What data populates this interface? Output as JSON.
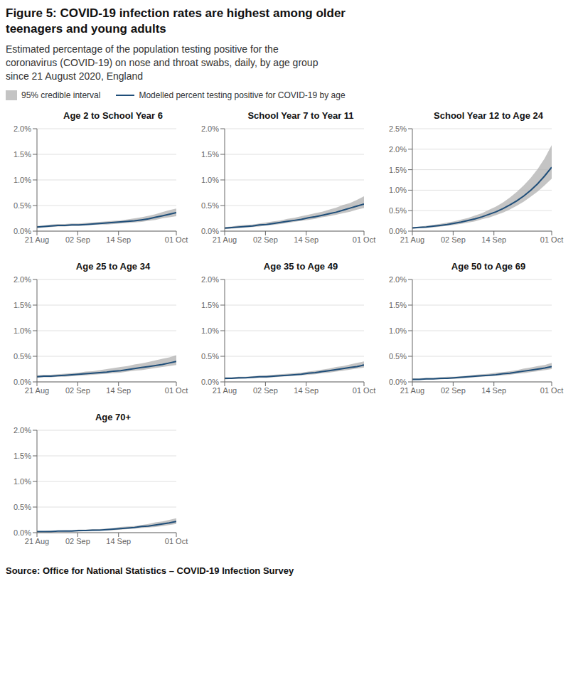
{
  "title": "Figure 5: COVID-19 infection rates are highest among older\nteenagers and young adults",
  "subtitle": "Estimated percentage of the population testing positive for the\ncoronavirus (COVID-19) on nose and throat swabs, daily, by age group\nsince 21 August 2020, England",
  "source": "Source: Office for National Statistics – COVID-19 Infection Survey",
  "chart_data": [
    {
      "type": "line",
      "title": "Age 2 to School Year 6",
      "x": [
        0,
        2.05,
        4.1,
        6.15,
        8.2,
        10.25,
        12.3,
        14.35,
        16.4,
        18.45,
        20.5,
        22.55,
        24.6,
        26.65,
        28.7,
        30.75,
        32.8,
        34.85,
        36.9,
        38.95,
        41
      ],
      "xlim": [
        0,
        41
      ],
      "xticks": [
        {
          "value": 0,
          "label": "21 Aug"
        },
        {
          "value": 12,
          "label": "02 Sep"
        },
        {
          "value": 24,
          "label": "14 Sep"
        },
        {
          "value": 41,
          "label": "01 Oct"
        }
      ],
      "ylim": [
        0,
        2.0
      ],
      "yticks": [
        {
          "value": 0.0,
          "label": "0.0%"
        },
        {
          "value": 0.5,
          "label": "0.5%"
        },
        {
          "value": 1.0,
          "label": "1.0%"
        },
        {
          "value": 1.5,
          "label": "1.5%"
        },
        {
          "value": 2.0,
          "label": "2.0%"
        }
      ],
      "grid": true,
      "series": [
        {
          "name": "95% credible interval",
          "type": "area",
          "color": "#b0b0b0",
          "lower": [
            0.06,
            0.07,
            0.08,
            0.09,
            0.09,
            0.1,
            0.1,
            0.11,
            0.12,
            0.13,
            0.13,
            0.14,
            0.15,
            0.16,
            0.17,
            0.18,
            0.2,
            0.22,
            0.25,
            0.27,
            0.29
          ],
          "upper": [
            0.1,
            0.11,
            0.13,
            0.14,
            0.14,
            0.15,
            0.15,
            0.16,
            0.17,
            0.18,
            0.19,
            0.2,
            0.21,
            0.23,
            0.25,
            0.27,
            0.3,
            0.33,
            0.37,
            0.41,
            0.44
          ]
        },
        {
          "name": "Modelled percent testing positive for COVID-19 by age",
          "type": "line",
          "color": "#1f4e79",
          "values": [
            0.08,
            0.09,
            0.1,
            0.11,
            0.11,
            0.12,
            0.12,
            0.13,
            0.14,
            0.15,
            0.16,
            0.17,
            0.18,
            0.19,
            0.2,
            0.22,
            0.24,
            0.27,
            0.3,
            0.33,
            0.36
          ]
        }
      ]
    },
    {
      "type": "line",
      "title": "School Year 7 to Year 11",
      "x": [
        0,
        2.05,
        4.1,
        6.15,
        8.2,
        10.25,
        12.3,
        14.35,
        16.4,
        18.45,
        20.5,
        22.55,
        24.6,
        26.65,
        28.7,
        30.75,
        32.8,
        34.85,
        36.9,
        38.95,
        41
      ],
      "xlim": [
        0,
        41
      ],
      "xticks": [
        {
          "value": 0,
          "label": "21 Aug"
        },
        {
          "value": 12,
          "label": "02 Sep"
        },
        {
          "value": 24,
          "label": "14 Sep"
        },
        {
          "value": 41,
          "label": "01 Oct"
        }
      ],
      "ylim": [
        0,
        2.0
      ],
      "yticks": [
        {
          "value": 0.0,
          "label": "0.0%"
        },
        {
          "value": 0.5,
          "label": "0.5%"
        },
        {
          "value": 1.0,
          "label": "1.0%"
        },
        {
          "value": 1.5,
          "label": "1.5%"
        },
        {
          "value": 2.0,
          "label": "2.0%"
        }
      ],
      "grid": true,
      "series": [
        {
          "name": "95% credible interval",
          "type": "area",
          "color": "#b0b0b0",
          "lower": [
            0.04,
            0.05,
            0.06,
            0.07,
            0.08,
            0.09,
            0.11,
            0.12,
            0.14,
            0.16,
            0.18,
            0.2,
            0.22,
            0.24,
            0.27,
            0.29,
            0.32,
            0.35,
            0.38,
            0.42,
            0.45
          ],
          "upper": [
            0.08,
            0.09,
            0.11,
            0.12,
            0.13,
            0.15,
            0.17,
            0.19,
            0.21,
            0.24,
            0.26,
            0.29,
            0.32,
            0.35,
            0.38,
            0.42,
            0.46,
            0.51,
            0.55,
            0.61,
            0.68
          ]
        },
        {
          "name": "Modelled percent testing positive for COVID-19 by age",
          "type": "line",
          "color": "#1f4e79",
          "values": [
            0.06,
            0.07,
            0.08,
            0.09,
            0.1,
            0.12,
            0.13,
            0.15,
            0.17,
            0.19,
            0.21,
            0.23,
            0.26,
            0.28,
            0.31,
            0.34,
            0.37,
            0.41,
            0.45,
            0.49,
            0.53
          ]
        }
      ]
    },
    {
      "type": "line",
      "title": "School Year 12 to Age 24",
      "x": [
        0,
        2.05,
        4.1,
        6.15,
        8.2,
        10.25,
        12.3,
        14.35,
        16.4,
        18.45,
        20.5,
        22.55,
        24.6,
        26.65,
        28.7,
        30.75,
        32.8,
        34.85,
        36.9,
        38.95,
        41
      ],
      "xlim": [
        0,
        41
      ],
      "xticks": [
        {
          "value": 0,
          "label": "21 Aug"
        },
        {
          "value": 12,
          "label": "02 Sep"
        },
        {
          "value": 24,
          "label": "14 Sep"
        },
        {
          "value": 41,
          "label": "01 Oct"
        }
      ],
      "ylim": [
        0,
        2.5
      ],
      "yticks": [
        {
          "value": 0.0,
          "label": "0.0%"
        },
        {
          "value": 0.5,
          "label": "0.5%"
        },
        {
          "value": 1.0,
          "label": "1.0%"
        },
        {
          "value": 1.5,
          "label": "1.5%"
        },
        {
          "value": 2.0,
          "label": "2.0%"
        },
        {
          "value": 2.5,
          "label": "2.5%"
        }
      ],
      "grid": true,
      "series": [
        {
          "name": "95% credible interval",
          "type": "area",
          "color": "#b0b0b0",
          "lower": [
            0.06,
            0.07,
            0.08,
            0.09,
            0.11,
            0.13,
            0.15,
            0.18,
            0.21,
            0.24,
            0.29,
            0.33,
            0.39,
            0.45,
            0.53,
            0.62,
            0.72,
            0.84,
            0.97,
            1.12,
            1.28
          ],
          "upper": [
            0.1,
            0.11,
            0.13,
            0.15,
            0.18,
            0.21,
            0.24,
            0.28,
            0.32,
            0.38,
            0.44,
            0.52,
            0.6,
            0.7,
            0.82,
            0.96,
            1.12,
            1.3,
            1.52,
            1.78,
            2.1
          ]
        },
        {
          "name": "Modelled percent testing positive for COVID-19 by age",
          "type": "line",
          "color": "#1f4e79",
          "values": [
            0.08,
            0.09,
            0.1,
            0.12,
            0.14,
            0.16,
            0.19,
            0.22,
            0.26,
            0.3,
            0.35,
            0.41,
            0.47,
            0.55,
            0.64,
            0.74,
            0.86,
            1.0,
            1.16,
            1.35,
            1.56
          ]
        }
      ]
    },
    {
      "type": "line",
      "title": "Age 25 to Age 34",
      "x": [
        0,
        2.05,
        4.1,
        6.15,
        8.2,
        10.25,
        12.3,
        14.35,
        16.4,
        18.45,
        20.5,
        22.55,
        24.6,
        26.65,
        28.7,
        30.75,
        32.8,
        34.85,
        36.9,
        38.95,
        41
      ],
      "xlim": [
        0,
        41
      ],
      "xticks": [
        {
          "value": 0,
          "label": "21 Aug"
        },
        {
          "value": 12,
          "label": "02 Sep"
        },
        {
          "value": 24,
          "label": "14 Sep"
        },
        {
          "value": 41,
          "label": "01 Oct"
        }
      ],
      "ylim": [
        0,
        2.0
      ],
      "yticks": [
        {
          "value": 0.0,
          "label": "0.0%"
        },
        {
          "value": 0.5,
          "label": "0.5%"
        },
        {
          "value": 1.0,
          "label": "1.0%"
        },
        {
          "value": 1.5,
          "label": "1.5%"
        },
        {
          "value": 2.0,
          "label": "2.0%"
        }
      ],
      "grid": true,
      "series": [
        {
          "name": "95% credible interval",
          "type": "area",
          "color": "#b0b0b0",
          "lower": [
            0.08,
            0.09,
            0.09,
            0.1,
            0.1,
            0.11,
            0.12,
            0.13,
            0.14,
            0.15,
            0.16,
            0.17,
            0.18,
            0.2,
            0.22,
            0.23,
            0.25,
            0.27,
            0.29,
            0.31,
            0.33
          ],
          "upper": [
            0.13,
            0.14,
            0.14,
            0.15,
            0.16,
            0.17,
            0.18,
            0.2,
            0.21,
            0.23,
            0.25,
            0.27,
            0.29,
            0.31,
            0.34,
            0.36,
            0.39,
            0.42,
            0.45,
            0.48,
            0.52
          ]
        },
        {
          "name": "Modelled percent testing positive for COVID-19 by age",
          "type": "line",
          "color": "#1f4e79",
          "values": [
            0.1,
            0.11,
            0.11,
            0.12,
            0.13,
            0.14,
            0.15,
            0.16,
            0.17,
            0.18,
            0.19,
            0.21,
            0.22,
            0.24,
            0.26,
            0.28,
            0.3,
            0.32,
            0.34,
            0.37,
            0.4
          ]
        }
      ]
    },
    {
      "type": "line",
      "title": "Age 35 to Age 49",
      "x": [
        0,
        2.05,
        4.1,
        6.15,
        8.2,
        10.25,
        12.3,
        14.35,
        16.4,
        18.45,
        20.5,
        22.55,
        24.6,
        26.65,
        28.7,
        30.75,
        32.8,
        34.85,
        36.9,
        38.95,
        41
      ],
      "xlim": [
        0,
        41
      ],
      "xticks": [
        {
          "value": 0,
          "label": "21 Aug"
        },
        {
          "value": 12,
          "label": "02 Sep"
        },
        {
          "value": 24,
          "label": "14 Sep"
        },
        {
          "value": 41,
          "label": "01 Oct"
        }
      ],
      "ylim": [
        0,
        2.0
      ],
      "yticks": [
        {
          "value": 0.0,
          "label": "0.0%"
        },
        {
          "value": 0.5,
          "label": "0.5%"
        },
        {
          "value": 1.0,
          "label": "1.0%"
        },
        {
          "value": 1.5,
          "label": "1.5%"
        },
        {
          "value": 2.0,
          "label": "2.0%"
        }
      ],
      "grid": true,
      "series": [
        {
          "name": "95% credible interval",
          "type": "area",
          "color": "#b0b0b0",
          "lower": [
            0.05,
            0.06,
            0.06,
            0.07,
            0.07,
            0.08,
            0.08,
            0.09,
            0.1,
            0.11,
            0.12,
            0.13,
            0.14,
            0.15,
            0.17,
            0.18,
            0.2,
            0.22,
            0.24,
            0.26,
            0.28
          ],
          "upper": [
            0.09,
            0.09,
            0.1,
            0.1,
            0.11,
            0.12,
            0.13,
            0.14,
            0.15,
            0.16,
            0.17,
            0.18,
            0.2,
            0.22,
            0.24,
            0.26,
            0.29,
            0.31,
            0.34,
            0.37,
            0.4
          ]
        },
        {
          "name": "Modelled percent testing positive for COVID-19 by age",
          "type": "line",
          "color": "#1f4e79",
          "values": [
            0.07,
            0.07,
            0.08,
            0.08,
            0.09,
            0.1,
            0.1,
            0.11,
            0.12,
            0.13,
            0.14,
            0.15,
            0.17,
            0.18,
            0.2,
            0.22,
            0.24,
            0.26,
            0.28,
            0.3,
            0.33
          ]
        }
      ]
    },
    {
      "type": "line",
      "title": "Age 50 to Age 69",
      "x": [
        0,
        2.05,
        4.1,
        6.15,
        8.2,
        10.25,
        12.3,
        14.35,
        16.4,
        18.45,
        20.5,
        22.55,
        24.6,
        26.65,
        28.7,
        30.75,
        32.8,
        34.85,
        36.9,
        38.95,
        41
      ],
      "xlim": [
        0,
        41
      ],
      "xticks": [
        {
          "value": 0,
          "label": "21 Aug"
        },
        {
          "value": 12,
          "label": "02 Sep"
        },
        {
          "value": 24,
          "label": "14 Sep"
        },
        {
          "value": 41,
          "label": "01 Oct"
        }
      ],
      "ylim": [
        0,
        2.0
      ],
      "yticks": [
        {
          "value": 0.0,
          "label": "0.0%"
        },
        {
          "value": 0.5,
          "label": "0.5%"
        },
        {
          "value": 1.0,
          "label": "1.0%"
        },
        {
          "value": 1.5,
          "label": "1.5%"
        },
        {
          "value": 2.0,
          "label": "2.0%"
        }
      ],
      "grid": true,
      "series": [
        {
          "name": "95% credible interval",
          "type": "area",
          "color": "#b0b0b0",
          "lower": [
            0.03,
            0.04,
            0.04,
            0.05,
            0.05,
            0.06,
            0.06,
            0.07,
            0.08,
            0.09,
            0.1,
            0.11,
            0.12,
            0.13,
            0.14,
            0.16,
            0.17,
            0.19,
            0.21,
            0.23,
            0.25
          ],
          "upper": [
            0.07,
            0.07,
            0.08,
            0.08,
            0.09,
            0.1,
            0.1,
            0.11,
            0.12,
            0.14,
            0.15,
            0.16,
            0.18,
            0.19,
            0.21,
            0.23,
            0.26,
            0.28,
            0.31,
            0.33,
            0.37
          ]
        },
        {
          "name": "Modelled percent testing positive for COVID-19 by age",
          "type": "line",
          "color": "#1f4e79",
          "values": [
            0.05,
            0.05,
            0.06,
            0.06,
            0.07,
            0.07,
            0.08,
            0.09,
            0.1,
            0.11,
            0.12,
            0.13,
            0.14,
            0.16,
            0.17,
            0.19,
            0.21,
            0.23,
            0.25,
            0.27,
            0.3
          ]
        }
      ]
    },
    {
      "type": "line",
      "title": "Age 70+",
      "x": [
        0,
        2.05,
        4.1,
        6.15,
        8.2,
        10.25,
        12.3,
        14.35,
        16.4,
        18.45,
        20.5,
        22.55,
        24.6,
        26.65,
        28.7,
        30.75,
        32.8,
        34.85,
        36.9,
        38.95,
        41
      ],
      "xlim": [
        0,
        41
      ],
      "xticks": [
        {
          "value": 0,
          "label": "21 Aug"
        },
        {
          "value": 12,
          "label": "02 Sep"
        },
        {
          "value": 24,
          "label": "14 Sep"
        },
        {
          "value": 41,
          "label": "01 Oct"
        }
      ],
      "ylim": [
        0,
        2.0
      ],
      "yticks": [
        {
          "value": 0.0,
          "label": "0.0%"
        },
        {
          "value": 0.5,
          "label": "0.5%"
        },
        {
          "value": 1.0,
          "label": "1.0%"
        },
        {
          "value": 1.5,
          "label": "1.5%"
        },
        {
          "value": 2.0,
          "label": "2.0%"
        }
      ],
      "grid": true,
      "series": [
        {
          "name": "95% credible interval",
          "type": "area",
          "color": "#b0b0b0",
          "lower": [
            0.01,
            0.01,
            0.01,
            0.02,
            0.02,
            0.02,
            0.02,
            0.03,
            0.03,
            0.04,
            0.04,
            0.05,
            0.06,
            0.07,
            0.08,
            0.09,
            0.1,
            0.11,
            0.13,
            0.15,
            0.17
          ],
          "upper": [
            0.03,
            0.03,
            0.04,
            0.04,
            0.05,
            0.05,
            0.06,
            0.06,
            0.07,
            0.07,
            0.08,
            0.09,
            0.11,
            0.12,
            0.13,
            0.15,
            0.17,
            0.2,
            0.22,
            0.25,
            0.28
          ]
        },
        {
          "name": "Modelled percent testing positive for COVID-19 by age",
          "type": "line",
          "color": "#1f4e79",
          "values": [
            0.02,
            0.02,
            0.02,
            0.03,
            0.03,
            0.03,
            0.04,
            0.04,
            0.05,
            0.05,
            0.06,
            0.07,
            0.08,
            0.09,
            0.1,
            0.12,
            0.13,
            0.15,
            0.17,
            0.19,
            0.22
          ]
        }
      ]
    }
  ]
}
